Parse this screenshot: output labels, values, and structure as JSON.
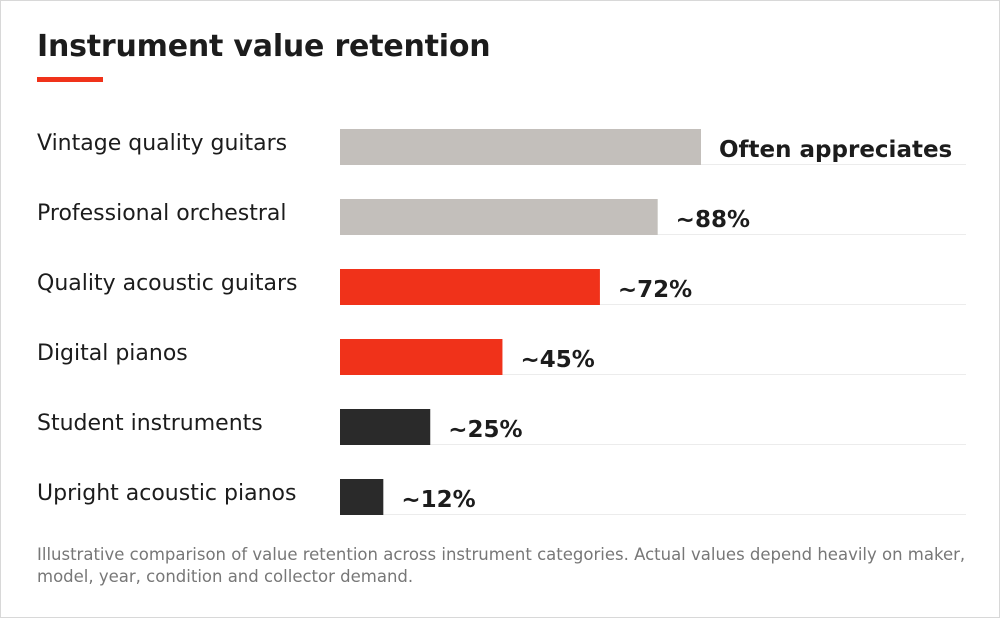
{
  "colors": {
    "accent": "#f0321a",
    "grey": "#c3bfbb",
    "dark": "#2a2a2a",
    "label": "#1c1c1c",
    "gridline": "#ececec"
  },
  "chart_data": {
    "type": "bar",
    "orientation": "horizontal",
    "title": "Instrument value retention",
    "xlim": [
      0,
      100
    ],
    "grid": false,
    "categories": [
      "Vintage quality guitars",
      "Professional orchestral",
      "Quality acoustic guitars",
      "Digital pianos",
      "Student instruments",
      "Upright acoustic pianos"
    ],
    "values": [
      100,
      88,
      72,
      45,
      25,
      12
    ],
    "data_labels": [
      "Often appreciates",
      "~88%",
      "~72%",
      "~45%",
      "~25%",
      "~12%"
    ],
    "bar_colors": [
      "grey",
      "grey",
      "accent",
      "accent",
      "dark",
      "dark"
    ]
  },
  "footnote": "Illustrative comparison of value retention across instrument categories. Actual values depend heavily on maker, model, year, condition and collector demand."
}
